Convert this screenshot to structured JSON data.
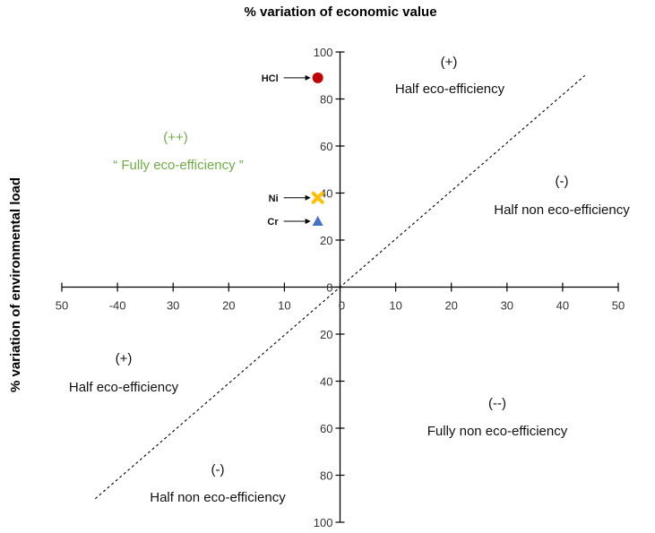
{
  "chart_data": {
    "type": "scatter",
    "title": "% variation of economic value",
    "xlabel": "",
    "ylabel": "% variation of environmental load",
    "xlim": [
      -50,
      50
    ],
    "ylim": [
      -100,
      100
    ],
    "x_tick_labels": [
      "50",
      "-40",
      "30",
      "20",
      "10",
      "0",
      "10",
      "20",
      "30",
      "40",
      "50"
    ],
    "x_tick_values": [
      -50,
      -40,
      -30,
      -20,
      -10,
      0,
      10,
      20,
      30,
      40,
      50
    ],
    "y_tick_labels_top": [
      "100",
      "80",
      "60",
      "40",
      "20",
      "0"
    ],
    "y_tick_values_top": [
      100,
      80,
      60,
      40,
      20,
      0
    ],
    "y_tick_labels_bottom": [
      "20",
      "40",
      "60",
      "80",
      "100"
    ],
    "y_tick_values_bottom": [
      -20,
      -40,
      -60,
      -80,
      -100
    ],
    "points": [
      {
        "label": "HCl",
        "x": -4,
        "y": 89,
        "marker": "circle",
        "color": "#c00000"
      },
      {
        "label": "Ni",
        "x": -4,
        "y": 38,
        "marker": "x",
        "color": "#ffc000"
      },
      {
        "label": "Cr",
        "x": -4,
        "y": 28,
        "marker": "triangle",
        "color": "#4472c4"
      }
    ],
    "reference_line": {
      "style": "dashed",
      "from": [
        -44,
        -90
      ],
      "to": [
        44,
        90
      ]
    },
    "annotations": [
      {
        "id": "q1",
        "sign": "(+)",
        "text": "Half eco-efficiency"
      },
      {
        "id": "q2",
        "sign": "(-)",
        "text": "Half non eco-efficiency"
      },
      {
        "id": "q3",
        "sign": "(++)",
        "text": "“ Fully eco-efficiency ”",
        "color": "#70ad47"
      },
      {
        "id": "q4",
        "sign": "(+)",
        "text": "Half eco-efficiency"
      },
      {
        "id": "q5",
        "sign": "(--)",
        "text": "Fully non eco-efficiency"
      },
      {
        "id": "q6",
        "sign": "(-)",
        "text": "Half non eco-efficiency"
      }
    ]
  }
}
